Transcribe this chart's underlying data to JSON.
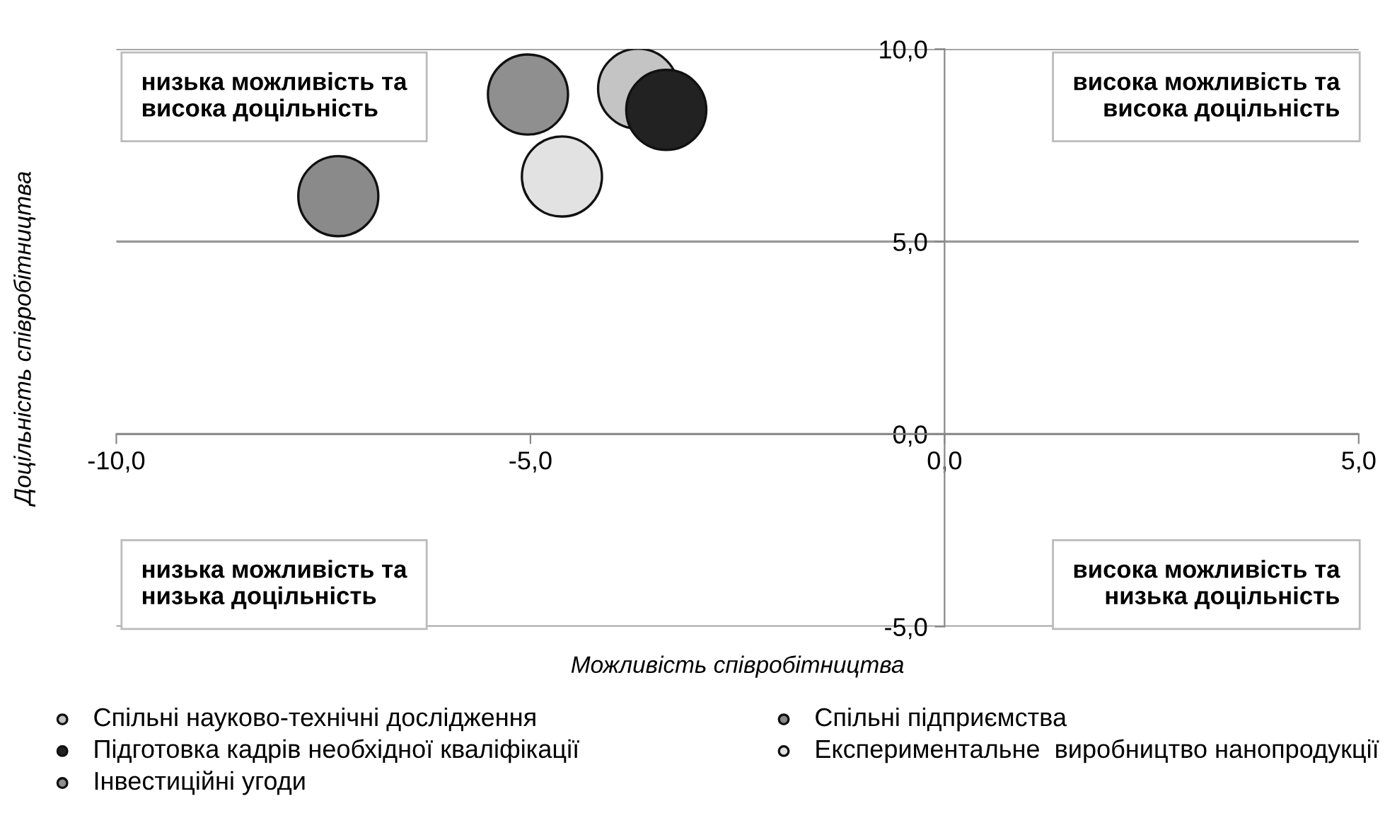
{
  "chart_data": {
    "type": "bubble",
    "xlabel": "Можливість співробітництва",
    "ylabel": "Доцільність співробітництва",
    "xlim": [
      -10,
      5
    ],
    "ylim": [
      -5,
      10
    ],
    "xticks": [
      {
        "value": -10,
        "label": "-10,0"
      },
      {
        "value": -5,
        "label": "-5,0"
      },
      {
        "value": 0,
        "label": "0,0"
      },
      {
        "value": 5,
        "label": "5,0"
      }
    ],
    "yticks": [
      {
        "value": -5,
        "label": "-5,0"
      },
      {
        "value": 0,
        "label": "0,0"
      },
      {
        "value": 5,
        "label": "5,0"
      },
      {
        "value": 10,
        "label": "10,0"
      }
    ],
    "grid": "y",
    "legend": "bottom",
    "annotations": [
      "низька можливість та\nвисока доцільність",
      "висока можливість та\nвисока доцільність",
      "низька можливість та\nнизька доцільність",
      "висока можливість та\nнизька доцільність"
    ],
    "series": [
      {
        "name": "Спільні науково-технічні дослідження",
        "color": "#c4c4c4",
        "x": [
          -3.7
        ],
        "values": [
          8.97
        ],
        "sizes": [
          1
        ]
      },
      {
        "name": "Спільні підприємства",
        "color": "#8a8a8a",
        "x": [
          -7.32
        ],
        "values": [
          6.18
        ],
        "sizes": [
          1
        ]
      },
      {
        "name": "Підготовка кадрів необхідної кваліфікації",
        "color": "#222222",
        "x": [
          -3.36
        ],
        "values": [
          8.42
        ],
        "sizes": [
          1
        ]
      },
      {
        "name": "Експериментальне  виробництво нанопродукції",
        "color": "#e2e2e2",
        "x": [
          -4.62
        ],
        "values": [
          6.69
        ],
        "sizes": [
          1
        ]
      },
      {
        "name": "Інвестиційні угоди",
        "color": "#8f8f8f",
        "x": [
          -5.03
        ],
        "values": [
          8.82
        ],
        "sizes": [
          1
        ]
      }
    ]
  }
}
